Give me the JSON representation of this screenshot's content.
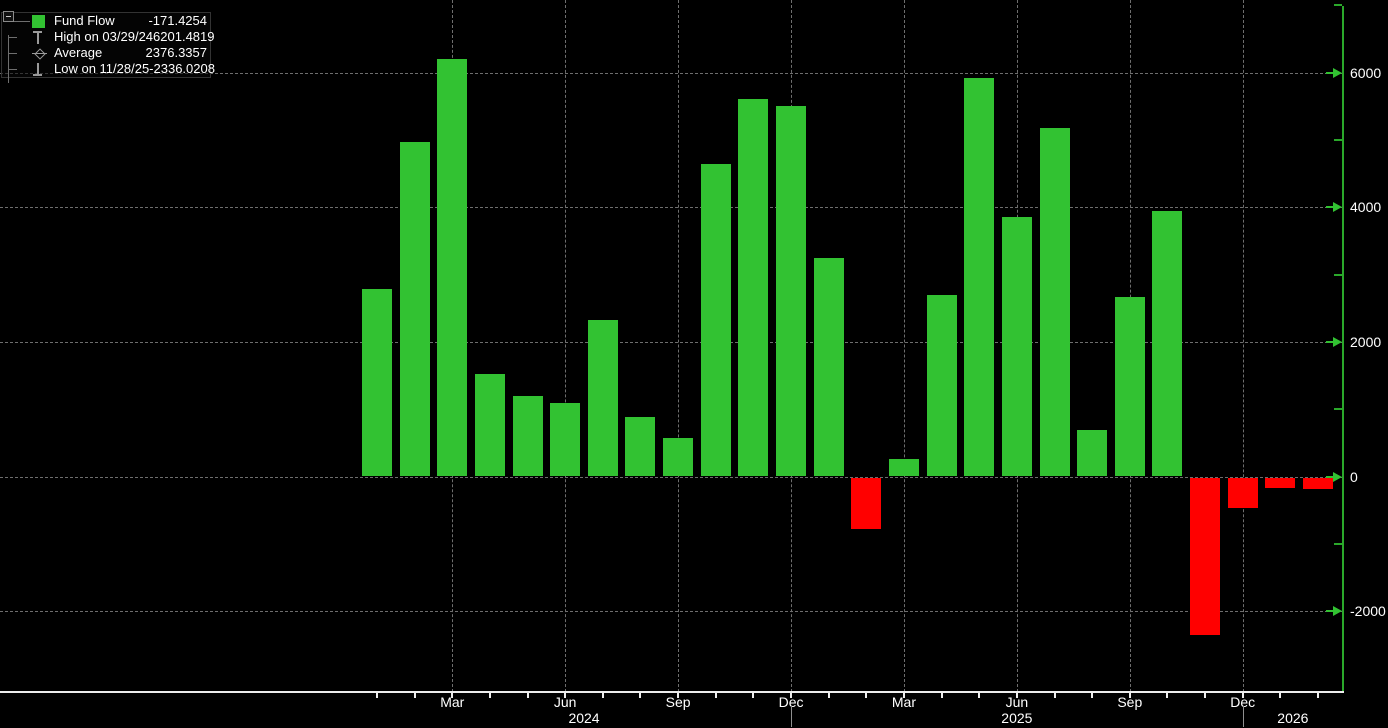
{
  "background_color": "#000000",
  "legend": {
    "expander_icon": "collapse-box",
    "rows": [
      {
        "icon": "fund-flow-swatch",
        "label": "Fund Flow",
        "value": "-171.4254"
      },
      {
        "icon": "high-marker-icon",
        "label": "High on 03/29/24",
        "value": "6201.4819"
      },
      {
        "icon": "average-marker-icon",
        "label": "Average",
        "value": "2376.3357"
      },
      {
        "icon": "low-marker-icon",
        "label": "Low on 11/28/25",
        "value": "-2336.0208"
      }
    ]
  },
  "chart_data": {
    "type": "bar",
    "title": "Fund Flow",
    "xlabel": "",
    "ylabel": "",
    "ylim": [
      -3200,
      7080
    ],
    "grid": "dashed",
    "legend_position": "top-left",
    "current_value": -171.4254,
    "high": {
      "date": "03/29/24",
      "value": 6201.4819
    },
    "average": 2376.3357,
    "low": {
      "date": "11/28/25",
      "value": -2336.0208
    },
    "categories": [
      "Jan 2024",
      "Feb 2024",
      "Mar 2024",
      "Apr 2024",
      "May 2024",
      "Jun 2024",
      "Jul 2024",
      "Aug 2024",
      "Sep 2024",
      "Oct 2024",
      "Nov 2024",
      "Dec 2024",
      "Jan 2025",
      "Feb 2025",
      "Mar 2025",
      "Apr 2025",
      "May 2025",
      "Jun 2025",
      "Jul 2025",
      "Aug 2025",
      "Sep 2025",
      "Oct 2025",
      "Nov 2025",
      "Dec 2025",
      "Jan 2026",
      "Feb 2026"
    ],
    "values": [
      2790,
      4970,
      6201.4819,
      1520,
      1195,
      1085,
      2320,
      885,
      575,
      4650,
      5615,
      5510,
      3240,
      -760,
      255,
      2690,
      5925,
      3850,
      5185,
      690,
      2660,
      3940,
      -2336.0208,
      -460,
      -150,
      -171.4254
    ],
    "positive_color": "#32c232",
    "negative_color": "#ff0000",
    "axis_green": "#2aa82a",
    "arrow_green": "#32c232",
    "grid_color": "#6e6e6e",
    "text_color": "#ffffff",
    "y_ticks": [
      6000,
      4000,
      2000,
      0,
      -2000
    ],
    "y_tick_labels": [
      "6000",
      "4000",
      "2000",
      "0",
      "-2000"
    ],
    "y_minor_ticks": [
      7000,
      5000,
      3000,
      1000,
      -1000
    ],
    "x_axis": {
      "labeled_ticks": [
        {
          "i": 2,
          "t": "Mar"
        },
        {
          "i": 5,
          "t": "Jun"
        },
        {
          "i": 8,
          "t": "Sep"
        },
        {
          "i": 11,
          "t": "Dec"
        },
        {
          "i": 14,
          "t": "Mar"
        },
        {
          "i": 17,
          "t": "Jun"
        },
        {
          "i": 20,
          "t": "Sep"
        },
        {
          "i": 23,
          "t": "Dec"
        }
      ],
      "year_separator_ticks": [
        11,
        23
      ],
      "year_labels": [
        "2024",
        "2025",
        "2026"
      ]
    }
  }
}
